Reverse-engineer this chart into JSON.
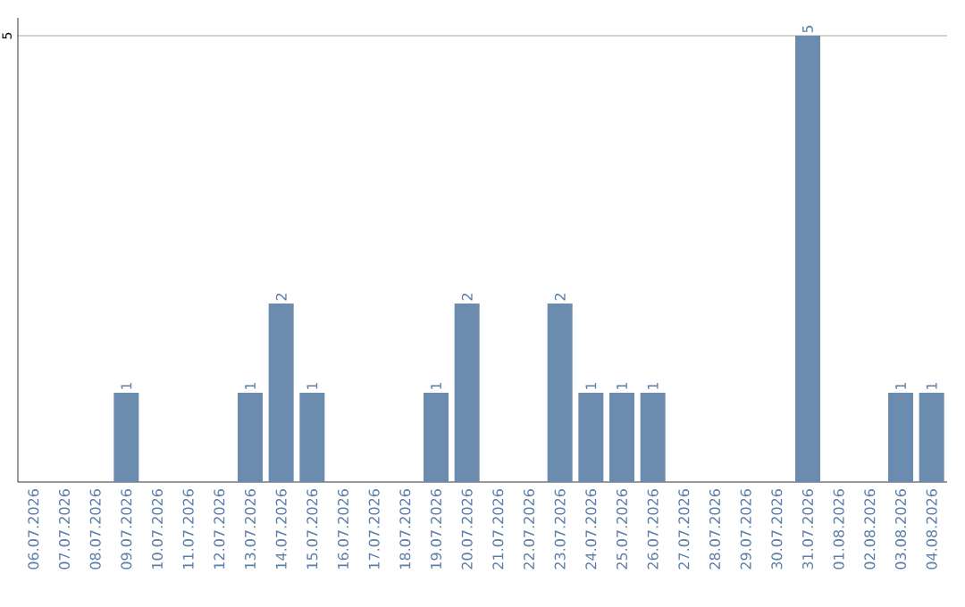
{
  "chart_data": {
    "type": "bar",
    "categories": [
      "06.07.2026",
      "07.07.2026",
      "08.07.2026",
      "09.07.2026",
      "10.07.2026",
      "11.07.2026",
      "12.07.2026",
      "13.07.2026",
      "14.07.2026",
      "15.07.2026",
      "16.07.2026",
      "17.07.2026",
      "18.07.2026",
      "19.07.2026",
      "20.07.2026",
      "21.07.2026",
      "22.07.2026",
      "23.07.2026",
      "24.07.2026",
      "25.07.2026",
      "26.07.2026",
      "27.07.2026",
      "28.07.2026",
      "29.07.2026",
      "30.07.2026",
      "31.07.2026",
      "01.08.2026",
      "02.08.2026",
      "03.08.2026",
      "04.08.2026"
    ],
    "values": [
      0,
      0,
      0,
      1,
      0,
      0,
      0,
      1,
      2,
      1,
      0,
      0,
      0,
      1,
      2,
      0,
      0,
      2,
      1,
      1,
      1,
      0,
      0,
      0,
      0,
      5,
      0,
      0,
      1,
      1
    ],
    "value_labels": [
      null,
      null,
      null,
      "1",
      null,
      null,
      null,
      "1",
      "2",
      "1",
      null,
      null,
      null,
      "1",
      "2",
      null,
      null,
      "2",
      "1",
      "1",
      "1",
      null,
      null,
      null,
      null,
      "5",
      null,
      null,
      "1",
      "1"
    ],
    "color": "#6b8cae",
    "ylim": [
      0,
      5.2
    ],
    "yticks": [
      5
    ],
    "grid": "y"
  }
}
